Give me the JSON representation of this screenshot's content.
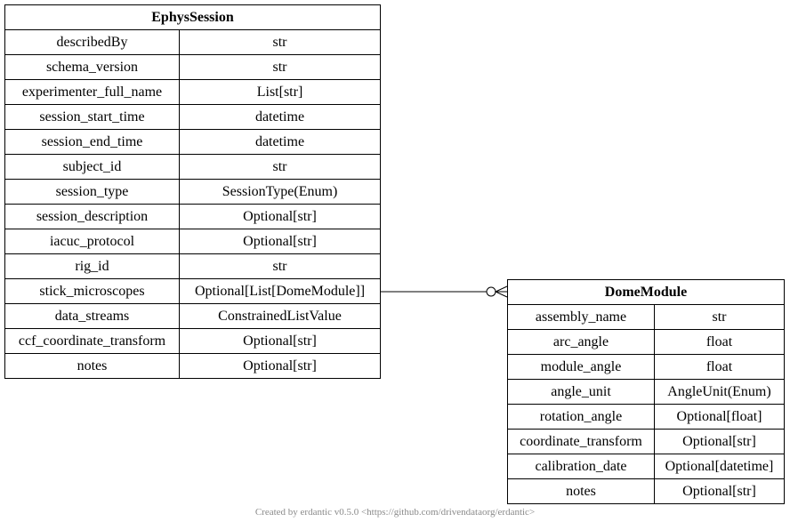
{
  "ephys": {
    "title": "EphysSession",
    "fields": [
      {
        "name": "describedBy",
        "type": "str"
      },
      {
        "name": "schema_version",
        "type": "str"
      },
      {
        "name": "experimenter_full_name",
        "type": "List[str]"
      },
      {
        "name": "session_start_time",
        "type": "datetime"
      },
      {
        "name": "session_end_time",
        "type": "datetime"
      },
      {
        "name": "subject_id",
        "type": "str"
      },
      {
        "name": "session_type",
        "type": "SessionType(Enum)"
      },
      {
        "name": "session_description",
        "type": "Optional[str]"
      },
      {
        "name": "iacuc_protocol",
        "type": "Optional[str]"
      },
      {
        "name": "rig_id",
        "type": "str"
      },
      {
        "name": "stick_microscopes",
        "type": "Optional[List[DomeModule]]"
      },
      {
        "name": "data_streams",
        "type": "ConstrainedListValue"
      },
      {
        "name": "ccf_coordinate_transform",
        "type": "Optional[str]"
      },
      {
        "name": "notes",
        "type": "Optional[str]"
      }
    ]
  },
  "dome": {
    "title": "DomeModule",
    "fields": [
      {
        "name": "assembly_name",
        "type": "str"
      },
      {
        "name": "arc_angle",
        "type": "float"
      },
      {
        "name": "module_angle",
        "type": "float"
      },
      {
        "name": "angle_unit",
        "type": "AngleUnit(Enum)"
      },
      {
        "name": "rotation_angle",
        "type": "Optional[float]"
      },
      {
        "name": "coordinate_transform",
        "type": "Optional[str]"
      },
      {
        "name": "calibration_date",
        "type": "Optional[datetime]"
      },
      {
        "name": "notes",
        "type": "Optional[str]"
      }
    ]
  },
  "footer": "Created by erdantic v0.5.0 <https://github.com/drivendataorg/erdantic>"
}
